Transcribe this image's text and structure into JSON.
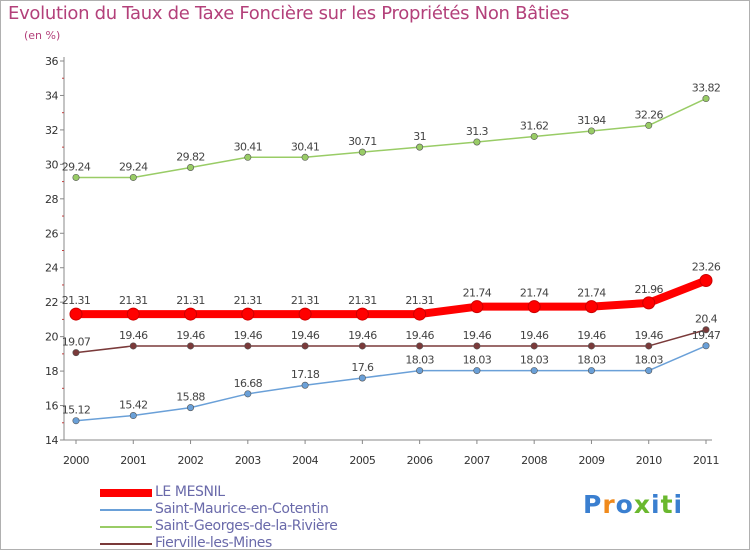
{
  "title": "Evolution du Taux de Taxe Foncière sur les Propriétés Non Bâties",
  "unit": "(en %)",
  "logo": "Proxiti",
  "chart_data": {
    "type": "line",
    "x": [
      "2000",
      "2001",
      "2002",
      "2003",
      "2004",
      "2005",
      "2006",
      "2007",
      "2008",
      "2009",
      "2010",
      "2011"
    ],
    "ylim": [
      14,
      36
    ],
    "yticks": [
      14,
      16,
      18,
      20,
      22,
      24,
      26,
      28,
      30,
      32,
      34,
      36
    ],
    "grid": false,
    "legend_position": "bottom-left",
    "series": [
      {
        "name": "LE MESNIL",
        "color": "#ff0000",
        "values": [
          21.31,
          21.31,
          21.31,
          21.31,
          21.31,
          21.31,
          21.31,
          21.74,
          21.74,
          21.74,
          21.96,
          23.26
        ],
        "labels": [
          "21.31",
          "21.31",
          "21.31",
          "21.31",
          "21.31",
          "21.31",
          "21.31",
          "21.74",
          "21.74",
          "21.74",
          "21.96",
          "23.26"
        ]
      },
      {
        "name": "Saint-Maurice-en-Cotentin",
        "color": "#6aa0d8",
        "values": [
          15.12,
          15.42,
          15.88,
          16.68,
          17.18,
          17.6,
          18.03,
          18.03,
          18.03,
          18.03,
          18.03,
          19.47
        ],
        "labels": [
          "15.12",
          "15.42",
          "15.88",
          "16.68",
          "17.18",
          "17.6",
          "18.03",
          "18.03",
          "18.03",
          "18.03",
          "18.03",
          "19.47"
        ]
      },
      {
        "name": "Saint-Georges-de-la-Rivière",
        "color": "#99cc66",
        "values": [
          29.24,
          29.24,
          29.82,
          30.41,
          30.41,
          30.71,
          31,
          31.3,
          31.62,
          31.94,
          32.26,
          33.82
        ],
        "labels": [
          "29.24",
          "29.24",
          "29.82",
          "30.41",
          "30.41",
          "30.71",
          "31",
          "31.3",
          "31.62",
          "31.94",
          "32.26",
          "33.82"
        ]
      },
      {
        "name": "Fierville-les-Mines",
        "color": "#7a3a3a",
        "values": [
          19.07,
          19.46,
          19.46,
          19.46,
          19.46,
          19.46,
          19.46,
          19.46,
          19.46,
          19.46,
          19.46,
          20.4
        ],
        "labels": [
          "19.07",
          "19.46",
          "19.46",
          "19.46",
          "19.46",
          "19.46",
          "19.46",
          "19.46",
          "19.46",
          "19.46",
          "19.46",
          "20.4"
        ]
      }
    ]
  }
}
